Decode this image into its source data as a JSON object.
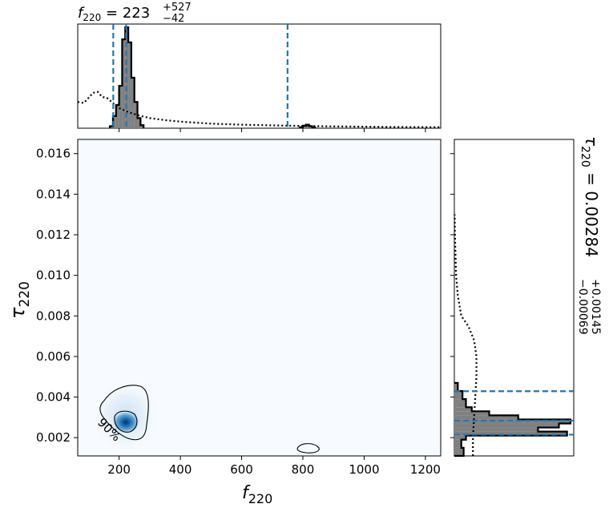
{
  "chart_data": [
    {
      "type": "histogram",
      "panel": "marginal-top",
      "parameter": "f_220",
      "title": {
        "symbol": "f",
        "subscript": "220",
        "equals": "=",
        "median": "223",
        "upper": "+527",
        "lower": "−42"
      },
      "x_range": [
        65,
        1250
      ],
      "bins": [
        {
          "x0": 170,
          "x1": 180,
          "value": 0.02
        },
        {
          "x0": 180,
          "x1": 190,
          "value": 0.12
        },
        {
          "x0": 190,
          "x1": 200,
          "value": 0.23
        },
        {
          "x0": 200,
          "x1": 210,
          "value": 0.42
        },
        {
          "x0": 210,
          "x1": 220,
          "value": 0.88
        },
        {
          "x0": 220,
          "x1": 230,
          "value": 1.0
        },
        {
          "x0": 230,
          "x1": 240,
          "value": 0.85
        },
        {
          "x0": 240,
          "x1": 250,
          "value": 0.5
        },
        {
          "x0": 250,
          "x1": 260,
          "value": 0.26
        },
        {
          "x0": 260,
          "x1": 270,
          "value": 0.1
        },
        {
          "x0": 270,
          "x1": 280,
          "value": 0.03
        },
        {
          "x0": 790,
          "x1": 800,
          "value": 0.01
        },
        {
          "x0": 800,
          "x1": 810,
          "value": 0.025
        },
        {
          "x0": 810,
          "x1": 820,
          "value": 0.035
        },
        {
          "x0": 820,
          "x1": 830,
          "value": 0.02
        },
        {
          "x0": 830,
          "x1": 840,
          "value": 0.01
        }
      ],
      "prior_curve": {
        "style": "dotted",
        "x": [
          65,
          85,
          100,
          115,
          130,
          145,
          160,
          180,
          200,
          230,
          260,
          300,
          350,
          400,
          500,
          600,
          700,
          800,
          900,
          1000,
          1100,
          1250
        ],
        "y": [
          0.26,
          0.25,
          0.3,
          0.35,
          0.36,
          0.31,
          0.3,
          0.25,
          0.2,
          0.16,
          0.13,
          0.1,
          0.08,
          0.065,
          0.045,
          0.035,
          0.028,
          0.022,
          0.018,
          0.015,
          0.012,
          0.01
        ]
      },
      "quantile_lines": [
        181,
        223,
        750
      ],
      "accent_color": "#1f77b4"
    },
    {
      "type": "heatmap",
      "panel": "joint",
      "x_label": {
        "symbol": "f",
        "subscript": "220"
      },
      "y_label": {
        "symbol": "τ",
        "subscript": "220"
      },
      "x_range": [
        65,
        1250
      ],
      "y_range": [
        0.0011,
        0.0167
      ],
      "x_ticks": [
        "200",
        "400",
        "600",
        "800",
        "1000",
        "1200"
      ],
      "x_tick_values": [
        200,
        400,
        600,
        800,
        1000,
        1200
      ],
      "y_ticks": [
        "0.002",
        "0.004",
        "0.006",
        "0.008",
        "0.010",
        "0.012",
        "0.014",
        "0.016"
      ],
      "y_tick_values": [
        0.002,
        0.004,
        0.006,
        0.008,
        0.01,
        0.012,
        0.014,
        0.016
      ],
      "density_peak": {
        "f": 225,
        "tau": 0.0027
      },
      "contour_label": "90%",
      "colormap": "Blues"
    },
    {
      "type": "histogram",
      "panel": "marginal-right",
      "parameter": "tau_220",
      "orientation": "horizontal",
      "title": {
        "symbol": "τ",
        "subscript": "220",
        "equals": "=",
        "median": "0.00284",
        "upper": "+0.00145",
        "lower": "−0.00069"
      },
      "y_range": [
        0.0011,
        0.0167
      ],
      "bins": [
        {
          "y0": 0.0011,
          "y1": 0.0015,
          "value": 0.08
        },
        {
          "y0": 0.0015,
          "y1": 0.0019,
          "value": 0.06
        },
        {
          "y0": 0.0019,
          "y1": 0.0021,
          "value": 0.1
        },
        {
          "y0": 0.0021,
          "y1": 0.0023,
          "value": 0.97
        },
        {
          "y0": 0.0023,
          "y1": 0.0025,
          "value": 0.72
        },
        {
          "y0": 0.0025,
          "y1": 0.0027,
          "value": 0.9
        },
        {
          "y0": 0.0027,
          "y1": 0.0029,
          "value": 1.0
        },
        {
          "y0": 0.0029,
          "y1": 0.0031,
          "value": 0.55
        },
        {
          "y0": 0.0031,
          "y1": 0.0033,
          "value": 0.3
        },
        {
          "y0": 0.0033,
          "y1": 0.0035,
          "value": 0.15
        },
        {
          "y0": 0.0035,
          "y1": 0.0039,
          "value": 0.1
        },
        {
          "y0": 0.0039,
          "y1": 0.0043,
          "value": 0.07
        },
        {
          "y0": 0.0043,
          "y1": 0.0047,
          "value": 0.03
        }
      ],
      "prior_curve": {
        "style": "dotted",
        "y": [
          0.0011,
          0.0015,
          0.002,
          0.003,
          0.004,
          0.005,
          0.006,
          0.0068,
          0.0075,
          0.008,
          0.009,
          0.01,
          0.011,
          0.012,
          0.013
        ],
        "x": [
          0.16,
          0.16,
          0.16,
          0.17,
          0.18,
          0.19,
          0.19,
          0.17,
          0.12,
          0.06,
          0.03,
          0.015,
          0.01,
          0.005,
          0.003
        ]
      },
      "quantile_lines": [
        0.00215,
        0.00284,
        0.00429
      ],
      "accent_color": "#1f77b4"
    }
  ]
}
